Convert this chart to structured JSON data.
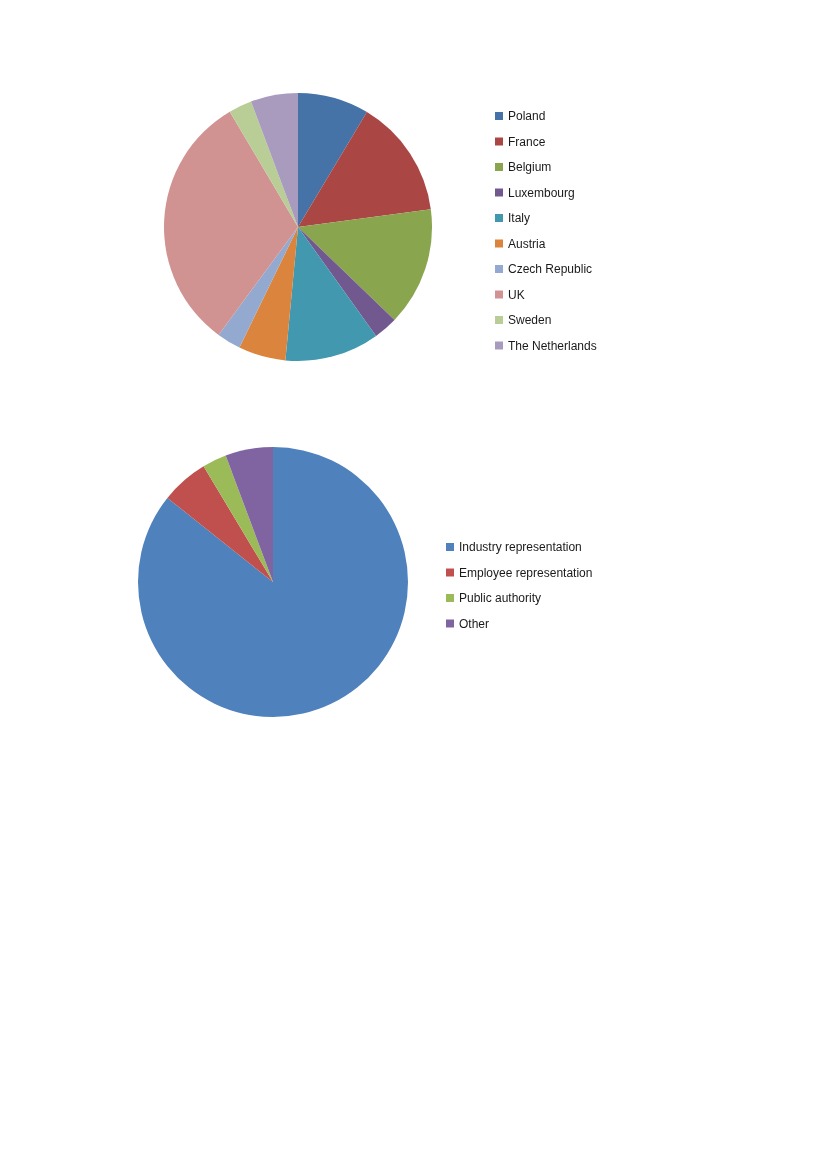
{
  "chart_data": [
    {
      "type": "pie",
      "categories": [
        "Poland",
        "France",
        "Belgium",
        "Luxembourg",
        "Italy",
        "Austria",
        "Czech Republic",
        "UK",
        "Sweden",
        "The Netherlands"
      ],
      "values": [
        8.6,
        14.3,
        14.3,
        2.9,
        11.4,
        5.7,
        2.9,
        31.4,
        2.8,
        5.7
      ],
      "colors": [
        "#4572a7",
        "#aa4643",
        "#89a54e",
        "#71588f",
        "#4198af",
        "#db843d",
        "#93a9cf",
        "#d19392",
        "#b9cd96",
        "#a99bbd"
      ],
      "legend": "right"
    },
    {
      "type": "pie",
      "categories": [
        "Industry representation",
        "Employee representation",
        "Public authority",
        "Other"
      ],
      "values": [
        85.7,
        5.7,
        2.9,
        5.7
      ],
      "colors": [
        "#4f81bd",
        "#c0504d",
        "#9bbb59",
        "#8064a2"
      ],
      "legend": "right"
    }
  ]
}
